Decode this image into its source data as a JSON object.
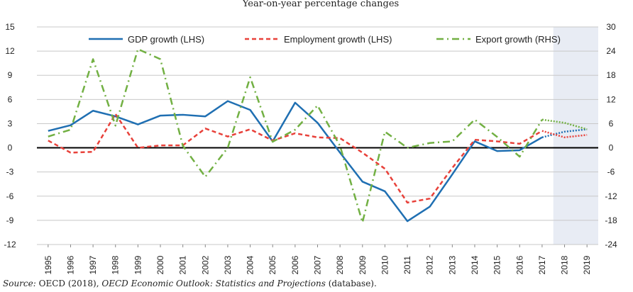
{
  "chart_data": {
    "type": "line",
    "title": "Year-on-year percentage changes",
    "categories": [
      "1995",
      "1996",
      "1997",
      "1998",
      "1999",
      "2000",
      "2001",
      "2002",
      "2003",
      "2004",
      "2005",
      "2006",
      "2007",
      "2008",
      "2009",
      "2010",
      "2011",
      "2012",
      "2013",
      "2014",
      "2015",
      "2016",
      "2017",
      "2018",
      "2019"
    ],
    "projection_start": "2018",
    "left_axis": {
      "ylim": [
        -12,
        15
      ],
      "ticks": [
        "15",
        "12",
        "9",
        "6",
        "3",
        "0",
        "-3",
        "-6",
        "-9",
        "-12"
      ]
    },
    "right_axis": {
      "ylim": [
        -24,
        30
      ],
      "ticks": [
        "30",
        "24",
        "18",
        "12",
        "6",
        "0",
        "-6",
        "-12",
        "-18",
        "-24"
      ]
    },
    "grid": true,
    "legend_position": "top",
    "series": [
      {
        "name": "GDP growth (LHS)",
        "axis": "left",
        "color": "#1f6fb2",
        "style": "solid",
        "values": [
          2.1,
          2.8,
          4.6,
          3.9,
          2.9,
          4.0,
          4.1,
          3.9,
          5.8,
          4.7,
          0.8,
          5.6,
          3.1,
          -0.6,
          -4.2,
          -5.4,
          -9.1,
          -7.3,
          -3.3,
          0.8,
          -0.4,
          -0.3,
          1.3,
          2.0,
          2.3
        ]
      },
      {
        "name": "Employment growth (LHS)",
        "axis": "left",
        "color": "#e8413a",
        "style": "dashed",
        "values": [
          0.9,
          -0.6,
          -0.5,
          4.2,
          0.0,
          0.3,
          0.3,
          2.4,
          1.4,
          2.3,
          0.9,
          1.8,
          1.3,
          1.2,
          -0.6,
          -2.6,
          -6.8,
          -6.3,
          -2.5,
          1.0,
          0.8,
          0.5,
          2.1,
          1.3,
          1.6
        ]
      },
      {
        "name": "Export growth (RHS)",
        "axis": "right",
        "color": "#72b043",
        "style": "dashdot",
        "values": [
          2.8,
          4.5,
          22.0,
          5.5,
          24.5,
          22.0,
          0.5,
          -7.2,
          0.0,
          17.5,
          1.5,
          4.5,
          10.5,
          0.5,
          -18.5,
          4.0,
          0.0,
          1.2,
          1.6,
          7.0,
          2.7,
          -2.2,
          7.0,
          6.2,
          4.6
        ]
      }
    ]
  },
  "source": {
    "label": "Source:",
    "text_plain_1": "OECD (2018), ",
    "text_italic": "OECD Economic Outlook: Statistics and Projections",
    "text_plain_2": " (database)."
  }
}
